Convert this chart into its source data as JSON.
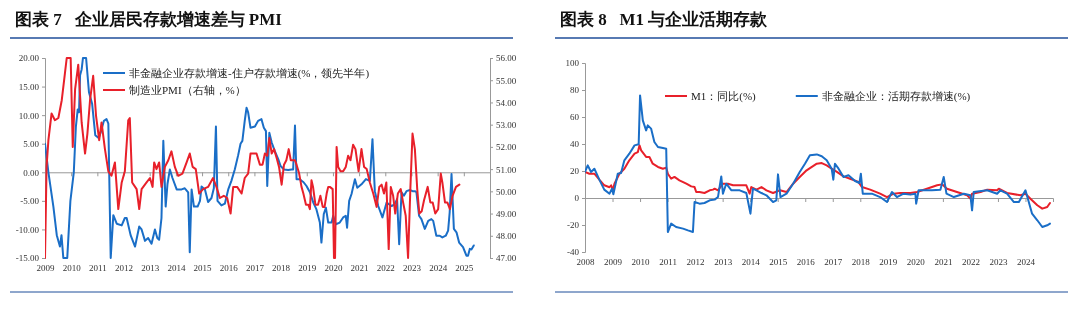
{
  "chart_data": [
    {
      "type": "line",
      "title": "图表 7   企业居民存款增速差与 PMI",
      "xlim": [
        2009,
        2026
      ],
      "xticks": [
        2009,
        2010,
        2011,
        2012,
        2013,
        2014,
        2015,
        2016,
        2017,
        2018,
        2019,
        2020,
        2021,
        2022,
        2023,
        2024,
        2025
      ],
      "ylim": [
        -15,
        20
      ],
      "yticks": [
        {
          "value": -15,
          "label": "-15.00"
        },
        {
          "value": -10,
          "label": "-10.00"
        },
        {
          "value": -5,
          "label": "-5.00"
        },
        {
          "value": 0,
          "label": "0.00"
        },
        {
          "value": 5,
          "label": "5.00"
        },
        {
          "value": 10,
          "label": "10.00"
        },
        {
          "value": 15,
          "label": "15.00"
        },
        {
          "value": 20,
          "label": "20.00"
        }
      ],
      "y2lim": [
        47,
        56
      ],
      "y2ticks": [
        {
          "value": 47,
          "label": "47.00"
        },
        {
          "value": 48,
          "label": "48.00"
        },
        {
          "value": 49,
          "label": "49.00"
        },
        {
          "value": 50,
          "label": "50.00"
        },
        {
          "value": 51,
          "label": "51.00"
        },
        {
          "value": 52,
          "label": "52.00"
        },
        {
          "value": 53,
          "label": "53.00"
        },
        {
          "value": 54,
          "label": "54.00"
        },
        {
          "value": 55,
          "label": "55.00"
        },
        {
          "value": 56,
          "label": "56.00"
        }
      ],
      "legend": "top left",
      "series": [
        {
          "name": "非金融企业存款增速-住户存款增速(%，领先半年)",
          "color": "#1a6ec7",
          "x": [
            2009.0,
            2009.13,
            2009.32,
            2009.45,
            2009.57,
            2009.63,
            2009.7,
            2009.85,
            2009.97,
            2010.1,
            2010.18,
            2010.25,
            2010.3,
            2010.34,
            2010.4,
            2010.45,
            2010.57,
            2010.68,
            2010.8,
            2010.92,
            2011.05,
            2011.13,
            2011.25,
            2011.35,
            2011.42,
            2011.51,
            2011.61,
            2011.74,
            2011.93,
            2012.05,
            2012.12,
            2012.27,
            2012.44,
            2012.6,
            2012.69,
            2012.82,
            2012.94,
            2013.07,
            2013.2,
            2013.29,
            2013.36,
            2013.45,
            2013.52,
            2013.61,
            2013.68,
            2013.77,
            2013.87,
            2014.03,
            2014.22,
            2014.34,
            2014.47,
            2014.53,
            2014.6,
            2014.69,
            2014.83,
            2014.92,
            2014.98,
            2015.11,
            2015.23,
            2015.36,
            2015.45,
            2015.53,
            2015.59,
            2015.74,
            2015.87,
            2016.0,
            2016.12,
            2016.25,
            2016.38,
            2016.47,
            2016.54,
            2016.63,
            2016.7,
            2016.76,
            2016.85,
            2017.02,
            2017.14,
            2017.27,
            2017.36,
            2017.44,
            2017.49,
            2017.57,
            2017.66,
            2017.78,
            2017.91,
            2018.0,
            2018.13,
            2018.29,
            2018.42,
            2018.48,
            2018.55,
            2018.61,
            2018.74,
            2018.8,
            2018.87,
            2018.99,
            2019.12,
            2019.25,
            2019.37,
            2019.5,
            2019.56,
            2019.65,
            2019.73,
            2019.82,
            2019.95,
            2020.01,
            2020.11,
            2020.26,
            2020.39,
            2020.49,
            2020.54,
            2020.62,
            2020.71,
            2020.84,
            2020.93,
            2021.09,
            2021.26,
            2021.41,
            2021.51,
            2021.6,
            2021.73,
            2021.89,
            2022.05,
            2022.24,
            2022.36,
            2022.45,
            2022.53,
            2022.62,
            2022.71,
            2022.81,
            2022.94,
            2023.04,
            2023.13,
            2023.19,
            2023.29,
            2023.38,
            2023.51,
            2023.64,
            2023.76,
            2023.83,
            2023.95,
            2024.08,
            2024.18,
            2024.31,
            2024.4,
            2024.46,
            2024.53,
            2024.62,
            2024.72,
            2024.82,
            2024.97,
            2025.1,
            2025.16,
            2025.23,
            2025.29,
            2025.38
          ],
          "values": [
            5,
            0,
            -6,
            -11,
            -13,
            -11,
            -15,
            -15,
            -5,
            0,
            8,
            11,
            10.5,
            17,
            18,
            20,
            20,
            14,
            12,
            6.5,
            6,
            7,
            9,
            9.3,
            8.5,
            -15,
            -7.5,
            -9,
            -9.3,
            -8,
            -8,
            -11,
            -13,
            -9.5,
            -10,
            -12,
            -11.5,
            -12.5,
            -10,
            -11.5,
            -11.8,
            -8,
            5.5,
            -6,
            -2,
            0.5,
            -1,
            -3,
            -3,
            -2.8,
            -3.5,
            -14,
            -3,
            -6,
            -6,
            -5,
            -2.5,
            -3,
            -5.2,
            -4.5,
            -2.8,
            8,
            -5,
            -5.8,
            -5.5,
            -3,
            -1.5,
            0.5,
            3,
            5,
            5.5,
            9,
            11.3,
            10.5,
            7.8,
            8,
            9,
            9.3,
            7.8,
            7.2,
            -2.4,
            6.9,
            5.2,
            3.7,
            2.3,
            1.1,
            0.5,
            0.4,
            0.5,
            0.5,
            8.2,
            -1.2,
            -1.2,
            -1.5,
            -1.7,
            -2.4,
            -3.5,
            -5.3,
            -6.5,
            -8.8,
            -12.3,
            -7.3,
            -6.2,
            -8.8,
            -8.8,
            -7.6,
            -9.1,
            -8.8,
            -7.9,
            -7.6,
            -9.7,
            -5,
            -3.8,
            -1.2,
            -2.7,
            -2.1,
            -1.2,
            -1.5,
            5.8,
            -3.3,
            -5.9,
            -7.9,
            -5.3,
            -5.9,
            -5.6,
            -4.7,
            -12.6,
            -3.5,
            -4.1,
            -3.3,
            -3.1,
            -3.3,
            -3.3,
            -3.5,
            -7.6,
            -8.2,
            -9.9,
            -8.5,
            -8.2,
            -8.5,
            -11.1,
            -11.1,
            -11.4,
            -11.1,
            -10.2,
            -7,
            -0.3,
            -9.9,
            -10.5,
            -12.3,
            -13.1,
            -14.6,
            -14.6,
            -13.4,
            -13.5,
            -12.8
          ]
        },
        {
          "name": "制造业PMI（右轴，%）",
          "color": "#e8202a",
          "axis": "y2",
          "x": [
            2009.0,
            2009.06,
            2009.13,
            2009.25,
            2009.38,
            2009.51,
            2009.64,
            2009.76,
            2009.83,
            2009.98,
            2010.06,
            2010.15,
            2010.27,
            2010.4,
            2010.53,
            2010.62,
            2010.72,
            2010.84,
            2010.95,
            2011.07,
            2011.16,
            2011.29,
            2011.42,
            2011.54,
            2011.67,
            2011.8,
            2011.93,
            2012.05,
            2012.18,
            2012.24,
            2012.33,
            2012.5,
            2012.6,
            2012.69,
            2012.88,
            2013.01,
            2013.11,
            2013.17,
            2013.26,
            2013.36,
            2013.45,
            2013.58,
            2013.71,
            2013.83,
            2013.96,
            2014.09,
            2014.25,
            2014.41,
            2014.53,
            2014.64,
            2014.76,
            2014.89,
            2015.04,
            2015.23,
            2015.42,
            2015.55,
            2015.68,
            2015.83,
            2015.96,
            2016.09,
            2016.19,
            2016.34,
            2016.51,
            2016.63,
            2016.76,
            2016.85,
            2016.95,
            2017.08,
            2017.21,
            2017.31,
            2017.4,
            2017.49,
            2017.57,
            2017.66,
            2017.75,
            2017.85,
            2017.94,
            2018.04,
            2018.13,
            2018.22,
            2018.31,
            2018.39,
            2018.55,
            2018.61,
            2018.71,
            2018.8,
            2018.87,
            2018.97,
            2019.06,
            2019.12,
            2019.18,
            2019.24,
            2019.33,
            2019.43,
            2019.52,
            2019.61,
            2019.68,
            2019.76,
            2019.82,
            2019.88,
            2019.99,
            2020.04,
            2020.08,
            2020.14,
            2020.2,
            2020.29,
            2020.39,
            2020.49,
            2020.58,
            2020.67,
            2020.77,
            2020.86,
            2020.98,
            2021.09,
            2021.19,
            2021.29,
            2021.41,
            2021.54,
            2021.67,
            2021.77,
            2021.86,
            2021.95,
            2022.04,
            2022.13,
            2022.21,
            2022.3,
            2022.38,
            2022.48,
            2022.59,
            2022.68,
            2022.78,
            2022.87,
            2022.96,
            2023.04,
            2023.13,
            2023.22,
            2023.3,
            2023.39,
            2023.48,
            2023.62,
            2023.72,
            2023.81,
            2023.91,
            2024.02,
            2024.12,
            2024.18,
            2024.28,
            2024.37,
            2024.47,
            2024.57,
            2024.7,
            2024.83
          ],
          "values": [
            47,
            51.1,
            52.3,
            53.5,
            53.2,
            53.3,
            54.1,
            55.3,
            56,
            56,
            52.0,
            54.6,
            55.7,
            53.1,
            51.7,
            52.6,
            54.1,
            55.2,
            53.4,
            52.3,
            53.1,
            51.9,
            50.9,
            50.7,
            51.3,
            49.2,
            50.4,
            50.9,
            53.2,
            53.3,
            50.4,
            50.1,
            49.2,
            50.1,
            50.4,
            50.6,
            50.2,
            51.3,
            51,
            51.3,
            50.2,
            51.1,
            51.4,
            51.8,
            51.1,
            50.7,
            50.8,
            51.3,
            51.7,
            51.1,
            51,
            49.9,
            50.1,
            50.2,
            50.6,
            50.2,
            49.7,
            49.8,
            49.7,
            49.0,
            50.2,
            50.2,
            49.9,
            50.6,
            50.8,
            51.7,
            51.7,
            51.7,
            51.2,
            51.2,
            51.7,
            51.6,
            52.4,
            51.7,
            51.9,
            51.5,
            51.1,
            50.3,
            51.2,
            51.4,
            51.9,
            51.4,
            51.4,
            51.2,
            50.8,
            50.2,
            49.9,
            49.4,
            49.4,
            49.2,
            50.5,
            50.2,
            49.4,
            49.4,
            49.8,
            49.3,
            49.3,
            49.9,
            50.2,
            50.2,
            50.1,
            47,
            47,
            52.0,
            51.1,
            50.9,
            50.9,
            51.1,
            51.6,
            51.4,
            52.1,
            51.9,
            50.9,
            51.9,
            51.1,
            51,
            50.4,
            49.9,
            49.3,
            50.2,
            50.3,
            49.9,
            50.4,
            47.4,
            50.2,
            49.8,
            49.0,
            49.9,
            50.1,
            49.5,
            48.9,
            47,
            50.2,
            52.6,
            51.9,
            50.1,
            49,
            49.1,
            49.6,
            50.2,
            49.5,
            49.5,
            49.0,
            49.2,
            50.8,
            50.4,
            49.5,
            49.5,
            49.2,
            49.8,
            50.2,
            50.3
          ]
        }
      ]
    },
    {
      "type": "line",
      "title": "图表 8   M1 与企业活期存款",
      "xlim": [
        2008,
        2025
      ],
      "xticks": [
        2008,
        2009,
        2010,
        2011,
        2012,
        2013,
        2014,
        2015,
        2016,
        2017,
        2018,
        2019,
        2020,
        2021,
        2022,
        2023,
        2024
      ],
      "ylim": [
        -40,
        100
      ],
      "yticks": [
        -40,
        -20,
        0,
        20,
        40,
        60,
        80,
        100
      ],
      "legend": "top",
      "series": [
        {
          "name": "M1：同比(%)",
          "color": "#e8202a",
          "x": [
            2008.0,
            2008.16,
            2008.34,
            2008.52,
            2008.7,
            2008.89,
            2008.95,
            2009.01,
            2009.07,
            2009.25,
            2009.43,
            2009.61,
            2009.8,
            2009.92,
            2009.98,
            2010.04,
            2010.22,
            2010.34,
            2010.46,
            2010.65,
            2010.83,
            2010.95,
            2011.01,
            2011.13,
            2011.25,
            2011.43,
            2011.68,
            2011.86,
            2011.98,
            2012.04,
            2012.16,
            2012.34,
            2012.53,
            2012.65,
            2012.71,
            2012.83,
            2013.01,
            2013.19,
            2013.38,
            2013.62,
            2013.86,
            2013.98,
            2014.04,
            2014.23,
            2014.41,
            2014.59,
            2014.83,
            2015.08,
            2015.32,
            2015.56,
            2015.8,
            2016.05,
            2016.24,
            2016.42,
            2016.6,
            2016.78,
            2016.96,
            2017.15,
            2017.39,
            2017.63,
            2017.93,
            2018.06,
            2018.36,
            2018.72,
            2018.97,
            2019.21,
            2019.45,
            2019.82,
            2020.06,
            2020.42,
            2020.79,
            2020.97,
            2021.15,
            2021.51,
            2021.88,
            2022.0,
            2022.06,
            2022.37,
            2022.61,
            2022.97,
            2023.03,
            2023.33,
            2023.82,
            2024.0,
            2024.18,
            2024.43,
            2024.61,
            2024.79,
            2024.89
          ],
          "values": [
            19.3,
            18,
            18,
            13.6,
            9.4,
            8,
            9.4,
            5.7,
            10.6,
            18,
            21.7,
            27.9,
            32.8,
            34,
            39,
            35.3,
            30.4,
            30.4,
            25.4,
            23,
            21.7,
            22.5,
            18,
            14.3,
            15.6,
            13.1,
            10.6,
            8.6,
            8.1,
            4.4,
            4.4,
            3.7,
            5.7,
            6.2,
            6.9,
            5.7,
            10.6,
            10.6,
            9.4,
            9.4,
            9.4,
            3.2,
            8.1,
            6.2,
            8.1,
            5.7,
            3.7,
            5.7,
            4.4,
            10.6,
            15.6,
            20.5,
            23,
            25.4,
            25.9,
            24.2,
            21.7,
            19.3,
            16,
            14.3,
            11.9,
            8.1,
            6.2,
            3.2,
            0.7,
            3.2,
            3.7,
            3.7,
            4.4,
            6.9,
            9.4,
            10.1,
            6.9,
            4.4,
            2,
            -0.5,
            3.2,
            4.4,
            6.2,
            5.7,
            6.9,
            3.7,
            2,
            3.2,
            -0.5,
            -5.4,
            -7.9,
            -6.7,
            -3.7
          ]
        },
        {
          "name": "非金融企业：活期存款增速(%)",
          "color": "#1a6ec7",
          "x": [
            2008.0,
            2008.1,
            2008.22,
            2008.34,
            2008.52,
            2008.7,
            2008.89,
            2008.98,
            2009.03,
            2009.19,
            2009.31,
            2009.43,
            2009.61,
            2009.8,
            2009.95,
            2010.0,
            2010.1,
            2010.22,
            2010.28,
            2010.4,
            2010.52,
            2010.65,
            2010.83,
            2010.95,
            2011.01,
            2011.13,
            2011.31,
            2011.56,
            2011.74,
            2011.92,
            2011.98,
            2012.16,
            2012.34,
            2012.53,
            2012.71,
            2012.83,
            2012.95,
            2013.01,
            2013.13,
            2013.32,
            2013.62,
            2013.86,
            2014.01,
            2014.1,
            2014.23,
            2014.41,
            2014.59,
            2014.83,
            2014.95,
            2015.01,
            2015.1,
            2015.32,
            2015.56,
            2015.8,
            2015.99,
            2016.17,
            2016.42,
            2016.6,
            2016.78,
            2016.96,
            2017.02,
            2017.08,
            2017.21,
            2017.39,
            2017.57,
            2017.81,
            2017.97,
            2018.02,
            2018.09,
            2018.42,
            2018.72,
            2018.97,
            2019.15,
            2019.33,
            2019.57,
            2019.82,
            2020.0,
            2020.03,
            2020.12,
            2020.3,
            2020.6,
            2020.91,
            2021.03,
            2021.13,
            2021.4,
            2021.76,
            2022.0,
            2022.06,
            2022.12,
            2022.61,
            2022.97,
            2023.09,
            2023.33,
            2023.58,
            2023.76,
            2024.0,
            2024.12,
            2024.24,
            2024.43,
            2024.61,
            2024.79,
            2024.89
          ],
          "values": [
            19.3,
            24.2,
            19.3,
            21.7,
            13.6,
            6.2,
            3.2,
            6.9,
            2.7,
            18,
            18.5,
            27.9,
            32.8,
            39,
            39.8,
            76,
            57.5,
            50.1,
            53.8,
            51.4,
            41.5,
            37.8,
            37,
            36.5,
            -25.2,
            -19,
            -21.5,
            -22.7,
            -24,
            -25.2,
            -3,
            -4.2,
            -3.7,
            -1.7,
            -1.2,
            0.7,
            16,
            3.2,
            10.6,
            5.7,
            5.7,
            3.7,
            -11.6,
            6.9,
            5.7,
            3.7,
            2,
            -3,
            -1.7,
            17.5,
            0.7,
            3.2,
            10.6,
            19.3,
            25.4,
            31.6,
            32.3,
            30.9,
            27.9,
            21.7,
            13.6,
            25.4,
            21.7,
            15.6,
            16.8,
            12.6,
            11.1,
            18,
            3.2,
            3.2,
            0.7,
            -3,
            4.4,
            0.7,
            3.2,
            2.5,
            3.2,
            -4.2,
            5.7,
            5.7,
            5.7,
            6.2,
            15.6,
            3.2,
            0.7,
            3.2,
            2,
            -9.1,
            4.4,
            5.7,
            3.2,
            5.7,
            3.2,
            -3,
            -3,
            5.7,
            -3,
            -11.6,
            -16.5,
            -21.5,
            -20.2,
            -19
          ]
        }
      ]
    }
  ]
}
